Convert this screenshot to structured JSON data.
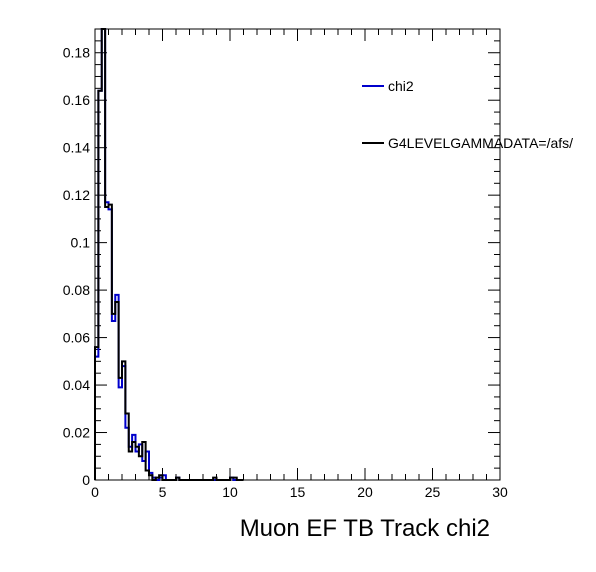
{
  "chart_data": {
    "type": "line",
    "title": "",
    "xlabel": "Muon EF TB Track chi2",
    "ylabel": "",
    "xlim": [
      0,
      30
    ],
    "ylim": [
      0,
      0.19
    ],
    "grid": false,
    "legend_position": "top-right",
    "x_ticks": [
      "0",
      "5",
      "10",
      "15",
      "20",
      "25",
      "30"
    ],
    "y_ticks": [
      "0",
      "0.02",
      "0.04",
      "0.06",
      "0.08",
      "0.1",
      "0.12",
      "0.14",
      "0.16",
      "0.18"
    ],
    "bin_width": 0.25,
    "series": [
      {
        "name": "chi2",
        "color": "#0000cc",
        "values": [
          0.052,
          0.164,
          0.19,
          0.117,
          0.114,
          0.067,
          0.078,
          0.039,
          0.048,
          0.022,
          0.014,
          0.019,
          0.012,
          0.015,
          0.008,
          0.012,
          0.003,
          0.001,
          0.0,
          0.001,
          0.002,
          0.0,
          0.0,
          0.0,
          0.001,
          0.0,
          0.0,
          0.0,
          0.0,
          0.0,
          0.0,
          0.0,
          0.0,
          0.0,
          0.0,
          0.0,
          0.0,
          0.0,
          0.0,
          0.0,
          0.001,
          0.0,
          0.0,
          0.0
        ]
      },
      {
        "name": "G4LEVELGAMMADATA=/afs/",
        "color": "#000000",
        "values": [
          0.056,
          0.164,
          0.19,
          0.115,
          0.116,
          0.07,
          0.075,
          0.043,
          0.05,
          0.028,
          0.012,
          0.016,
          0.014,
          0.01,
          0.016,
          0.004,
          0.002,
          0.0,
          0.001,
          0.002,
          0.0,
          0.0,
          0.0,
          0.0,
          0.001,
          0.0,
          0.0,
          0.0,
          0.0,
          0.0,
          0.0,
          0.0,
          0.0,
          0.0,
          0.0,
          0.001,
          0.0,
          0.0,
          0.0,
          0.0,
          0.001,
          0.001,
          0.0,
          0.0
        ]
      }
    ]
  }
}
